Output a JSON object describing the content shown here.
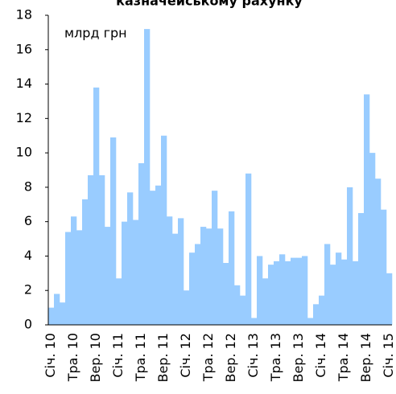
{
  "chart_data": {
    "type": "bar",
    "title": "казначейському рахунку",
    "annotations": [
      "млрд грн"
    ],
    "categories": [
      "Січ. 10",
      null,
      null,
      null,
      "Тра. 10",
      null,
      null,
      null,
      "Вер. 10",
      null,
      null,
      null,
      "Січ. 11",
      null,
      null,
      null,
      "Тра. 11",
      null,
      null,
      null,
      "Вер. 11",
      null,
      null,
      null,
      "Січ. 12",
      null,
      null,
      null,
      "Тра. 12",
      null,
      null,
      null,
      "Вер. 12",
      null,
      null,
      null,
      "Січ. 13",
      null,
      null,
      null,
      "Тра. 13",
      null,
      null,
      null,
      "Вер. 13",
      null,
      null,
      null,
      "Січ. 14",
      null,
      null,
      null,
      "Тра. 14",
      null,
      null,
      null,
      "Вер. 14",
      null,
      null,
      null,
      "Січ. 15"
    ],
    "values": [
      1.0,
      1.8,
      1.3,
      5.4,
      6.3,
      5.5,
      7.3,
      8.7,
      13.8,
      8.7,
      5.7,
      10.9,
      2.7,
      6.0,
      7.7,
      6.1,
      9.4,
      17.2,
      7.8,
      8.1,
      11.0,
      6.3,
      5.3,
      6.2,
      2.0,
      4.2,
      4.7,
      5.7,
      5.6,
      7.8,
      5.6,
      3.6,
      6.6,
      2.3,
      1.7,
      8.8,
      0.4,
      4.0,
      2.7,
      3.5,
      3.7,
      4.1,
      3.7,
      3.9,
      3.9,
      4.0,
      0.4,
      1.2,
      1.7,
      4.7,
      3.5,
      4.2,
      3.8,
      8.0,
      3.7,
      6.5,
      13.4,
      10.0,
      8.5,
      6.7,
      3.0
    ],
    "color": "#99ccff",
    "ylim": [
      0,
      18
    ],
    "yticks": [
      0,
      2,
      4,
      6,
      8,
      10,
      12,
      14,
      16,
      18
    ],
    "grid": false
  }
}
